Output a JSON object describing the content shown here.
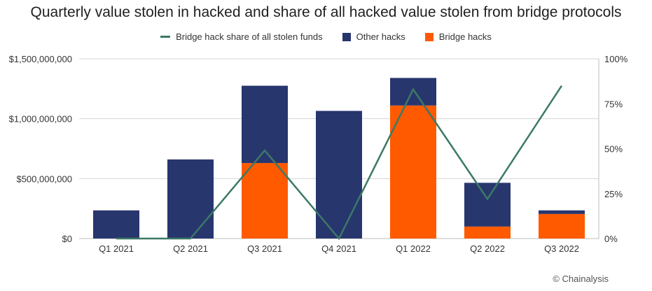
{
  "title": "Quarterly value stolen in hacked and share of all hacked value stolen from bridge protocols",
  "credit": "© Chainalysis",
  "colors": {
    "bridge": "#FF5A00",
    "other": "#28366E",
    "line": "#3C7866",
    "grid": "#d6d6d6",
    "axis_text": "#333333"
  },
  "chart_data": {
    "type": "bar",
    "stacked": true,
    "title": "Quarterly value stolen in hacked and share of all hacked value stolen from bridge protocols",
    "categories": [
      "Q1 2021",
      "Q2 2021",
      "Q3 2021",
      "Q4 2021",
      "Q1 2022",
      "Q2 2022",
      "Q3 2022"
    ],
    "series": [
      {
        "name": "Bridge hacks",
        "kind": "bar",
        "axis": "left",
        "values": [
          0,
          0,
          630000000,
          0,
          1110000000,
          100000000,
          205000000
        ]
      },
      {
        "name": "Other hacks",
        "kind": "bar",
        "axis": "left",
        "values": [
          235000000,
          660000000,
          645000000,
          1065000000,
          230000000,
          365000000,
          30000000
        ]
      },
      {
        "name": "Bridge hack share of all stolen funds",
        "kind": "line",
        "axis": "right",
        "values": [
          0,
          0,
          49,
          0,
          83,
          22,
          85
        ]
      }
    ],
    "left_axis": {
      "min": 0,
      "max": 1500000000,
      "ticks": [
        0,
        500000000,
        1000000000,
        1500000000
      ],
      "tick_labels": [
        "$0",
        "$500,000,000",
        "$1,000,000,000",
        "$1,500,000,000"
      ]
    },
    "right_axis": {
      "min": 0,
      "max": 100,
      "ticks": [
        0,
        25,
        50,
        75,
        100
      ],
      "tick_labels": [
        "0%",
        "25%",
        "50%",
        "75%",
        "100%"
      ]
    },
    "legend": {
      "placement": "top-center",
      "entries": [
        "Bridge hack share of all stolen funds",
        "Other hacks",
        "Bridge hacks"
      ]
    },
    "grid": true
  }
}
